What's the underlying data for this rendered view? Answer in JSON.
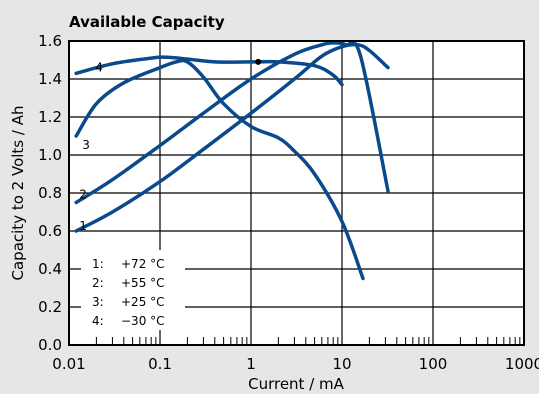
{
  "chart_data": {
    "type": "line",
    "title": "Available Capacity",
    "xlabel": "Current / mA",
    "ylabel": "Capacity to 2 Volts / Ah",
    "xscale": "log",
    "xlim": [
      0.01,
      1000
    ],
    "ylim": [
      0.0,
      1.6
    ],
    "xticks": [
      "0.01",
      "0.1",
      "1",
      "10",
      "100",
      "1000"
    ],
    "yticks": [
      "0.0",
      "0.2",
      "0.4",
      "0.6",
      "0.8",
      "1.0",
      "1.2",
      "1.4",
      "1.6"
    ],
    "grid": true,
    "line_color": "#0a4a8c",
    "legend": [
      {
        "id": "1",
        "label": "1:",
        "temp": "+72 °C"
      },
      {
        "id": "2",
        "label": "2:",
        "temp": "+55 °C"
      },
      {
        "id": "3",
        "label": "3:",
        "temp": "+25 °C"
      },
      {
        "id": "4",
        "label": "4:",
        "temp": "−30 °C"
      }
    ],
    "legend_position": "bottom-left",
    "series": [
      {
        "id": "1",
        "points": [
          [
            0.012,
            0.6
          ],
          [
            0.03,
            0.7
          ],
          [
            0.1,
            0.86
          ],
          [
            0.3,
            1.03
          ],
          [
            1,
            1.22
          ],
          [
            3,
            1.4
          ],
          [
            6,
            1.52
          ],
          [
            10,
            1.57
          ],
          [
            15,
            1.58
          ],
          [
            20,
            1.55
          ],
          [
            32,
            1.46
          ]
        ]
      },
      {
        "id": "2",
        "points": [
          [
            0.012,
            0.75
          ],
          [
            0.03,
            0.87
          ],
          [
            0.1,
            1.05
          ],
          [
            0.3,
            1.22
          ],
          [
            1,
            1.4
          ],
          [
            3,
            1.53
          ],
          [
            6,
            1.58
          ],
          [
            8,
            1.59
          ],
          [
            11,
            1.58
          ],
          [
            16,
            1.52
          ],
          [
            32,
            0.81
          ]
        ]
      },
      {
        "id": "3",
        "points": [
          [
            0.012,
            1.1
          ],
          [
            0.02,
            1.27
          ],
          [
            0.04,
            1.38
          ],
          [
            0.1,
            1.46
          ],
          [
            0.15,
            1.49
          ],
          [
            0.2,
            1.49
          ],
          [
            0.3,
            1.41
          ],
          [
            0.5,
            1.27
          ],
          [
            1,
            1.15
          ],
          [
            2,
            1.09
          ],
          [
            3,
            1.02
          ],
          [
            5,
            0.9
          ],
          [
            10,
            0.65
          ],
          [
            17,
            0.35
          ]
        ]
      },
      {
        "id": "4",
        "points": [
          [
            0.012,
            1.43
          ],
          [
            0.03,
            1.48
          ],
          [
            0.08,
            1.51
          ],
          [
            0.12,
            1.515
          ],
          [
            0.2,
            1.505
          ],
          [
            0.4,
            1.49
          ],
          [
            1,
            1.49
          ],
          [
            1.2,
            1.49
          ],
          [
            2,
            1.49
          ],
          [
            5,
            1.47
          ],
          [
            8,
            1.42
          ],
          [
            10,
            1.37
          ]
        ]
      }
    ],
    "marker": {
      "x": 1.2,
      "y": 1.49
    }
  }
}
